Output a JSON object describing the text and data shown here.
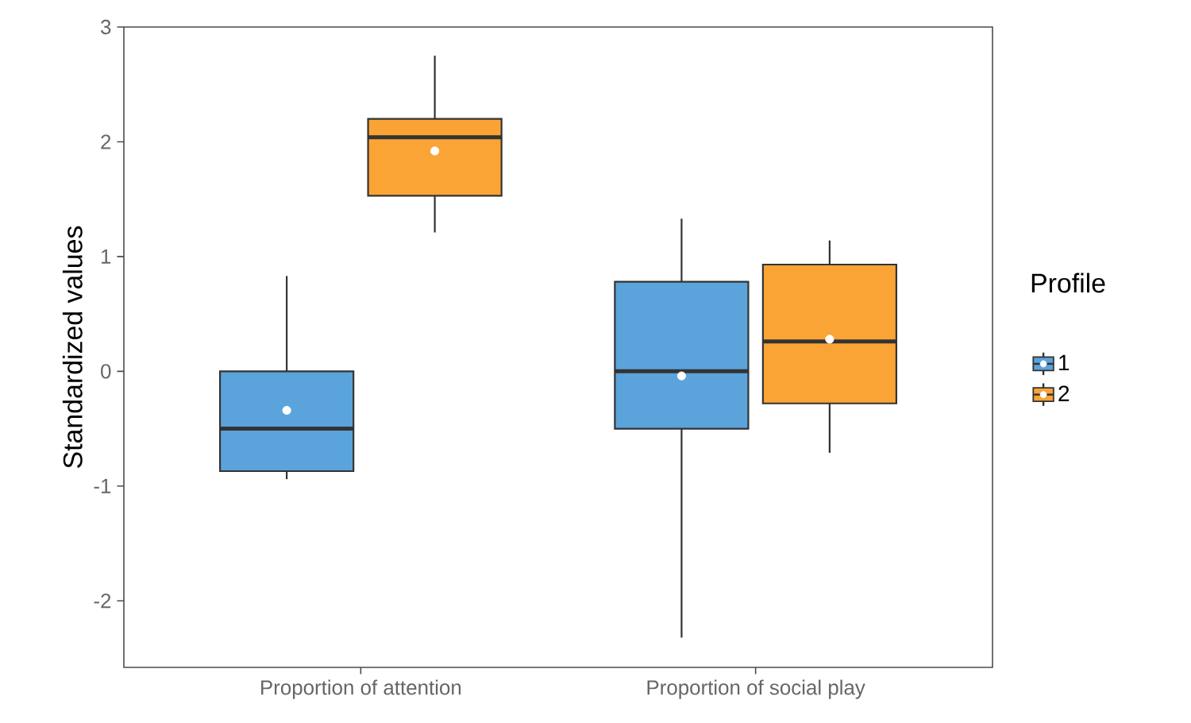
{
  "chart_data": {
    "type": "box",
    "ylabel": "Standardized values",
    "legend_title": "Profile",
    "categories": [
      "Proportion of attention",
      "Proportion of social play"
    ],
    "ylim": [
      -2.58,
      3.0
    ],
    "yticks": [
      -2,
      -1,
      0,
      1,
      2,
      3
    ],
    "grid": false,
    "legend": "right",
    "series": [
      {
        "name": "1",
        "color": "#5ba3db",
        "boxes": [
          {
            "low": -0.94,
            "q1": -0.87,
            "median": -0.5,
            "q3": 0.0,
            "high": 0.83,
            "mean": -0.34
          },
          {
            "low": -2.32,
            "q1": -0.5,
            "median": 0.0,
            "q3": 0.78,
            "high": 1.33,
            "mean": -0.04
          }
        ]
      },
      {
        "name": "2",
        "color": "#f9a435",
        "boxes": [
          {
            "low": 1.21,
            "q1": 1.53,
            "median": 2.04,
            "q3": 2.2,
            "high": 2.75,
            "mean": 1.92
          },
          {
            "low": -0.71,
            "q1": -0.28,
            "median": 0.26,
            "q3": 0.93,
            "high": 1.14,
            "mean": 0.28
          }
        ]
      }
    ]
  }
}
